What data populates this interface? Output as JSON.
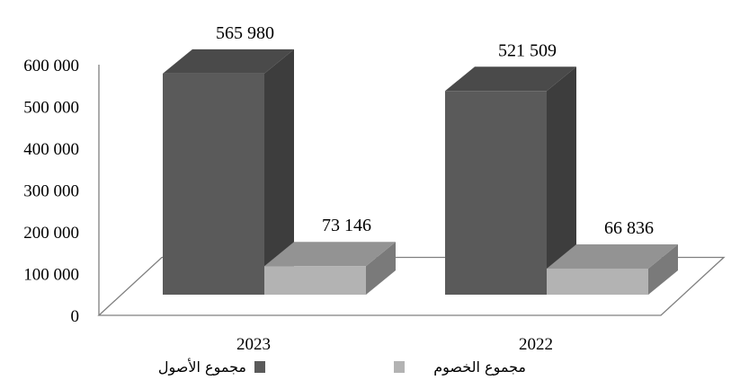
{
  "chart_data": {
    "type": "bar",
    "style": "3d-column",
    "categories": [
      "2023",
      "2022"
    ],
    "series": [
      {
        "name": "مجموع الأصول",
        "values": [
          565980,
          521509
        ],
        "color": "#5a5a5a"
      },
      {
        "name": "مجموع الخصوم",
        "values": [
          73146,
          66836
        ],
        "color": "#b3b3b3"
      }
    ],
    "data_labels": [
      [
        "565 980",
        "521 509"
      ],
      [
        "73 146",
        "66 836"
      ]
    ],
    "y_ticks": [
      "0",
      "100 000",
      "200 000",
      "300 000",
      "400 000",
      "500 000",
      "600 000"
    ],
    "ylim": [
      0,
      600000
    ],
    "grid": false,
    "legend_position": "bottom",
    "title": "",
    "xlabel": "",
    "ylabel": ""
  }
}
